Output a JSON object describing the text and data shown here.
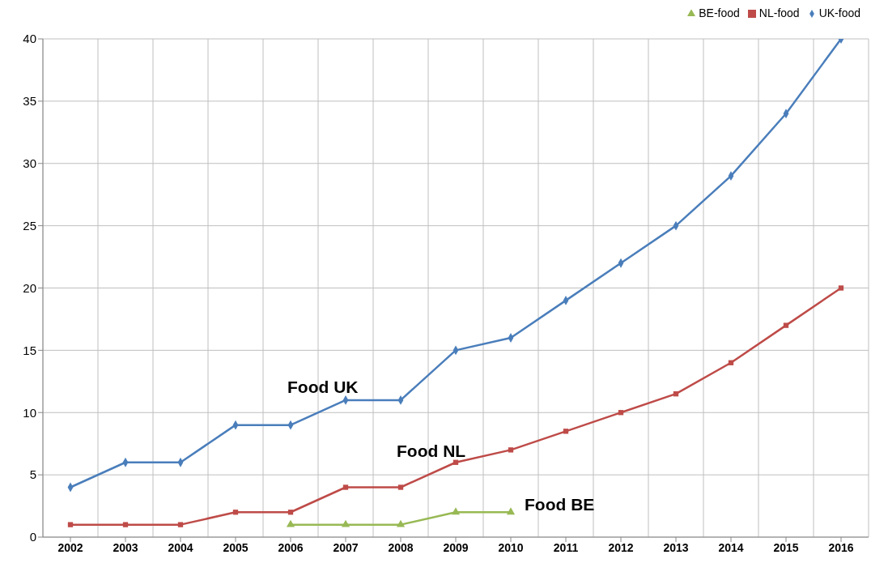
{
  "chart_data": {
    "type": "line",
    "categories": [
      "2002",
      "2003",
      "2004",
      "2005",
      "2006",
      "2007",
      "2008",
      "2009",
      "2010",
      "2011",
      "2012",
      "2013",
      "2014",
      "2015",
      "2016"
    ],
    "series": [
      {
        "name": "UK-food",
        "color": "#4a7ebb",
        "marker": "diamond",
        "values": [
          4,
          6,
          6,
          9,
          9,
          11,
          11,
          15,
          16,
          19,
          22,
          25,
          29,
          34,
          40
        ]
      },
      {
        "name": "NL-food",
        "color": "#be4b48",
        "marker": "square",
        "values": [
          1,
          1,
          1,
          2,
          2,
          4,
          4,
          6,
          7,
          8.5,
          10,
          11.5,
          14,
          17,
          20
        ]
      },
      {
        "name": "BE-food",
        "color": "#98b954",
        "marker": "triangle",
        "values": [
          null,
          null,
          null,
          null,
          1,
          1,
          1,
          2,
          2,
          null,
          null,
          null,
          null,
          null,
          null
        ]
      }
    ],
    "ylim": [
      0,
      40
    ],
    "yticks": [
      0,
      5,
      10,
      15,
      20,
      25,
      30,
      35,
      40
    ],
    "grid": true,
    "legend": "top right",
    "line_style": "solid",
    "annotations": [
      "Food UK",
      "Food NL",
      "Food BE"
    ]
  }
}
